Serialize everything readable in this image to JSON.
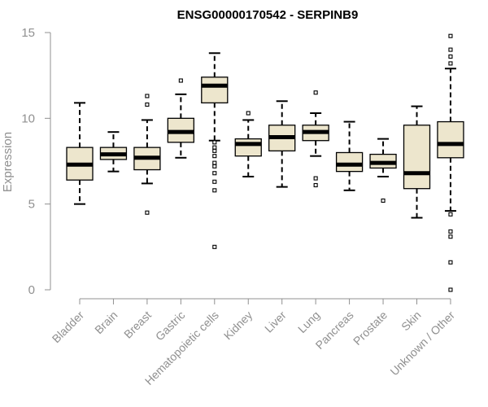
{
  "chart_data": {
    "type": "box",
    "title": "ENSG00000170542 - SERPINB9",
    "xlabel": "",
    "ylabel": "Expression",
    "ylim": [
      0,
      15
    ],
    "yticks": [
      0,
      5,
      10,
      15
    ],
    "categories": [
      "Bladder",
      "Brain",
      "Breast",
      "Gastric",
      "Hematopoietic cells",
      "Kidney",
      "Liver",
      "Lung",
      "Pancreas",
      "Prostate",
      "Skin",
      "Unknown / Other"
    ],
    "colors": {
      "box_fill": "#ede6cd",
      "box_stroke": "#000000",
      "median": "#000000",
      "axis": "#909090"
    },
    "boxes": [
      {
        "category": "Bladder",
        "whisker_low": 5.0,
        "q1": 6.4,
        "median": 7.3,
        "q3": 8.3,
        "whisker_high": 10.9,
        "outliers": []
      },
      {
        "category": "Brain",
        "whisker_low": 6.9,
        "q1": 7.6,
        "median": 7.9,
        "q3": 8.3,
        "whisker_high": 9.2,
        "outliers": []
      },
      {
        "category": "Breast",
        "whisker_low": 6.2,
        "q1": 7.0,
        "median": 7.7,
        "q3": 8.3,
        "whisker_high": 9.9,
        "outliers": [
          4.5,
          10.8,
          11.3
        ]
      },
      {
        "category": "Gastric",
        "whisker_low": 7.7,
        "q1": 8.6,
        "median": 9.2,
        "q3": 10.0,
        "whisker_high": 11.4,
        "outliers": [
          12.2
        ]
      },
      {
        "category": "Hematopoietic cells",
        "whisker_low": 8.7,
        "q1": 10.9,
        "median": 11.9,
        "q3": 12.4,
        "whisker_high": 13.8,
        "outliers": [
          2.5,
          5.8,
          6.3,
          6.8,
          7.2,
          7.4,
          7.8,
          8.1,
          8.3,
          8.6
        ]
      },
      {
        "category": "Kidney",
        "whisker_low": 6.6,
        "q1": 7.8,
        "median": 8.5,
        "q3": 8.8,
        "whisker_high": 9.9,
        "outliers": [
          10.3
        ]
      },
      {
        "category": "Liver",
        "whisker_low": 6.0,
        "q1": 8.1,
        "median": 8.9,
        "q3": 9.6,
        "whisker_high": 11.0,
        "outliers": []
      },
      {
        "category": "Lung",
        "whisker_low": 7.8,
        "q1": 8.7,
        "median": 9.2,
        "q3": 9.6,
        "whisker_high": 10.3,
        "outliers": [
          6.1,
          6.5,
          11.5
        ]
      },
      {
        "category": "Pancreas",
        "whisker_low": 5.8,
        "q1": 6.9,
        "median": 7.3,
        "q3": 8.0,
        "whisker_high": 9.8,
        "outliers": []
      },
      {
        "category": "Prostate",
        "whisker_low": 6.6,
        "q1": 7.1,
        "median": 7.4,
        "q3": 7.9,
        "whisker_high": 8.8,
        "outliers": [
          5.2
        ]
      },
      {
        "category": "Skin",
        "whisker_low": 4.2,
        "q1": 5.9,
        "median": 6.8,
        "q3": 9.6,
        "whisker_high": 10.7,
        "outliers": []
      },
      {
        "category": "Unknown / Other",
        "whisker_low": 4.6,
        "q1": 7.7,
        "median": 8.5,
        "q3": 9.8,
        "whisker_high": 12.9,
        "outliers": [
          0.0,
          1.6,
          3.1,
          3.4,
          4.4,
          13.2,
          13.6,
          14.0,
          14.8
        ]
      }
    ]
  }
}
